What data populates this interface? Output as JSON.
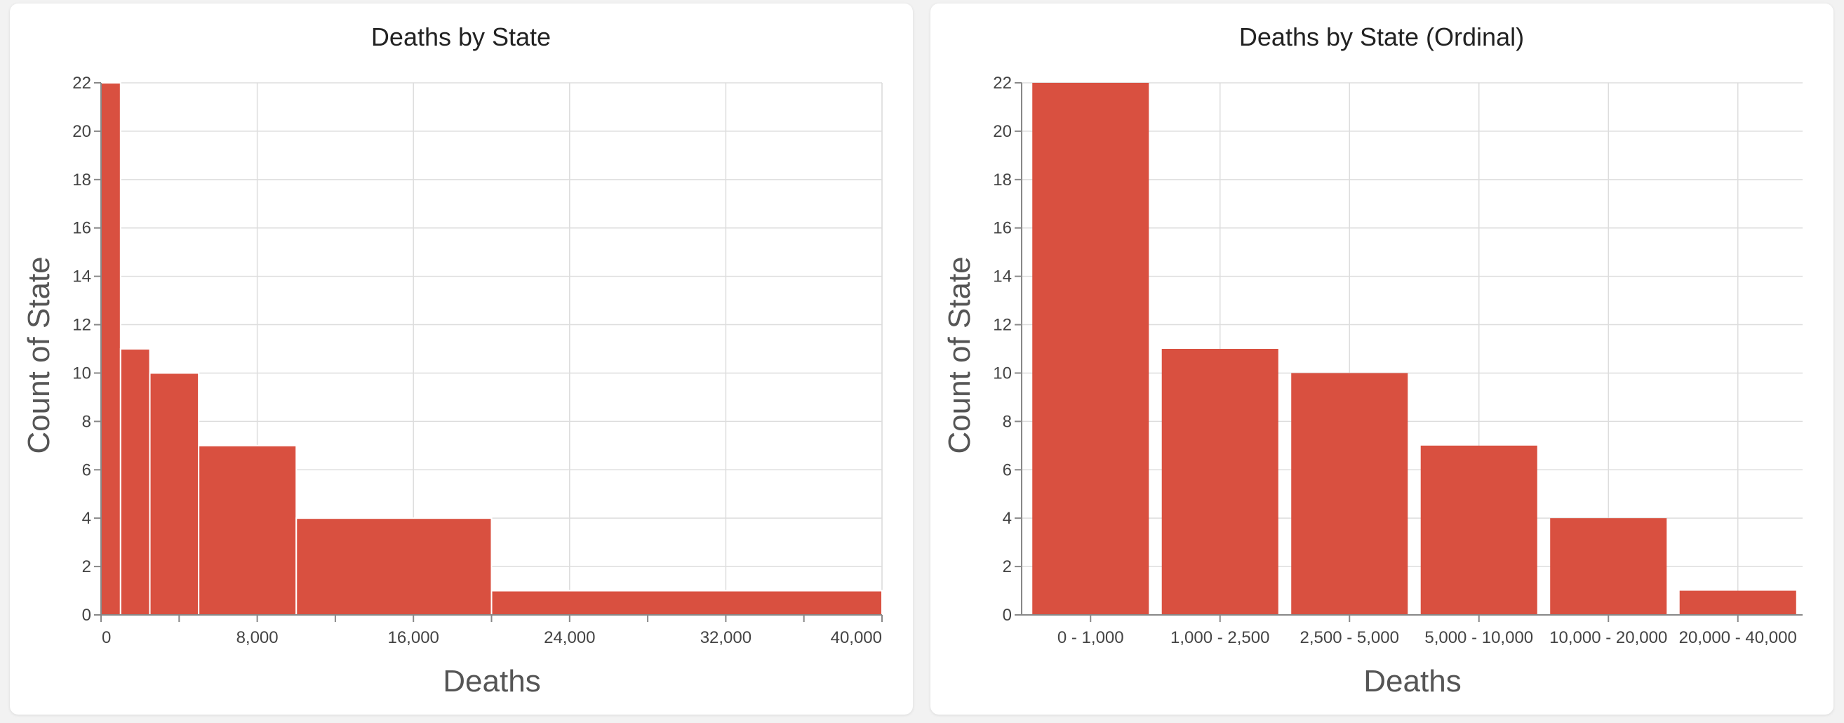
{
  "colors": {
    "bar": "#d95040",
    "background": "#f2f2f2",
    "panel": "#ffffff"
  },
  "chart_data": [
    {
      "type": "bar",
      "title": "Deaths by State",
      "xlabel": "Deaths",
      "ylabel": "Count of State",
      "grid": true,
      "xlim": [
        0,
        40000
      ],
      "ylim": [
        0,
        22
      ],
      "x_ticks": [
        0,
        8000,
        16000,
        24000,
        32000,
        40000
      ],
      "x_tick_labels": [
        "0",
        "8,000",
        "16,000",
        "24,000",
        "32,000",
        "40,000"
      ],
      "y_ticks": [
        0,
        2,
        4,
        6,
        8,
        10,
        12,
        14,
        16,
        18,
        20,
        22
      ],
      "y_tick_labels": [
        "0",
        "2",
        "4",
        "6",
        "8",
        "10",
        "12",
        "14",
        "16",
        "18",
        "20",
        "22"
      ],
      "bins": [
        {
          "start": 0,
          "end": 1000,
          "value": 22
        },
        {
          "start": 1000,
          "end": 2500,
          "value": 11
        },
        {
          "start": 2500,
          "end": 5000,
          "value": 10
        },
        {
          "start": 5000,
          "end": 10000,
          "value": 7
        },
        {
          "start": 10000,
          "end": 20000,
          "value": 4
        },
        {
          "start": 20000,
          "end": 40000,
          "value": 1
        }
      ]
    },
    {
      "type": "bar",
      "title": "Deaths by State (Ordinal)",
      "xlabel": "Deaths",
      "ylabel": "Count of State",
      "grid": true,
      "ylim": [
        0,
        22
      ],
      "y_ticks": [
        0,
        2,
        4,
        6,
        8,
        10,
        12,
        14,
        16,
        18,
        20,
        22
      ],
      "y_tick_labels": [
        "0",
        "2",
        "4",
        "6",
        "8",
        "10",
        "12",
        "14",
        "16",
        "18",
        "20",
        "22"
      ],
      "categories": [
        "0 - 1,000",
        "1,000 - 2,500",
        "2,500 - 5,000",
        "5,000 - 10,000",
        "10,000 - 20,000",
        "20,000 - 40,000"
      ],
      "values": [
        22,
        11,
        10,
        7,
        4,
        1
      ]
    }
  ]
}
